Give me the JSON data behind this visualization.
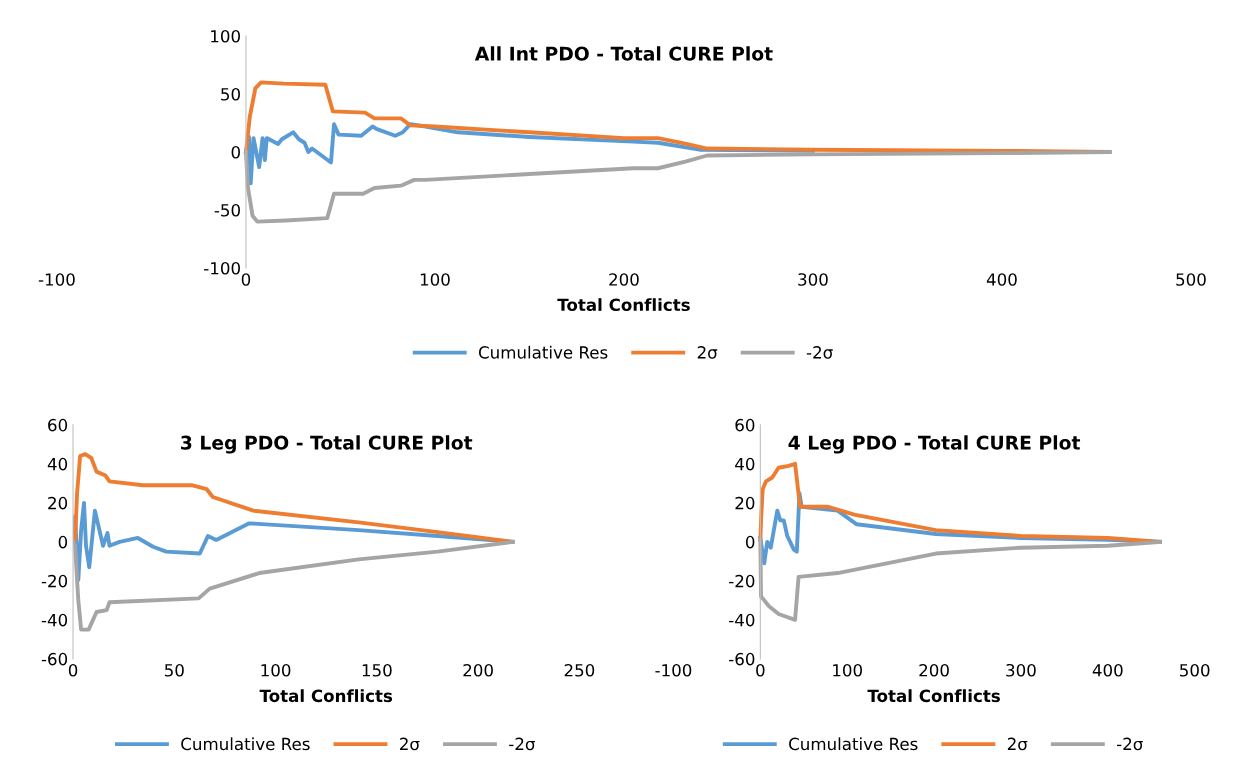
{
  "chart_data": [
    {
      "type": "line",
      "title": "All Int PDO - Total CURE Plot",
      "xlabel": "Total Conflicts",
      "xlim": [
        -100,
        500
      ],
      "xticks": [
        -100,
        0,
        100,
        200,
        300,
        400,
        500
      ],
      "ylim": [
        -100,
        100
      ],
      "yticks": [
        -100,
        -50,
        0,
        50,
        100
      ],
      "grid": false,
      "legend": "bottom",
      "marker": "none",
      "line_style": "solid",
      "series": [
        {
          "name": "Cumulative Res",
          "color": "#5b9bd5",
          "x": [
            0,
            1.6,
            2.5,
            4,
            7,
            8.8,
            10,
            11,
            17,
            19,
            25,
            28,
            31,
            33,
            35,
            45,
            46.6,
            49,
            61,
            67,
            69,
            79,
            83,
            87,
            95,
            112,
            150,
            205,
            218,
            240,
            300
          ],
          "values": [
            0,
            13,
            -27,
            12,
            -13,
            12,
            -7,
            12,
            7,
            11,
            17,
            11,
            8,
            0,
            3,
            -9,
            24,
            15,
            14,
            22,
            20,
            14,
            17,
            24,
            22,
            17,
            13,
            9,
            8,
            2,
            1
          ]
        },
        {
          "name": "2σ",
          "color": "#ed7d31",
          "x": [
            0,
            2,
            5,
            8,
            20,
            42,
            46,
            63,
            68,
            82,
            87,
            100,
            150,
            200,
            218,
            233,
            244,
            300,
            400,
            457
          ],
          "values": [
            0,
            30,
            55,
            60,
            59,
            58,
            35,
            34,
            29,
            29,
            23,
            22,
            17,
            12,
            12,
            7,
            3,
            2,
            1,
            0
          ]
        },
        {
          "name": "-2σ",
          "color": "#a5a5a5",
          "x": [
            0,
            1,
            3.5,
            6,
            21,
            43,
            46.6,
            62,
            68,
            82,
            89,
            95,
            150,
            205,
            218,
            233,
            244,
            300,
            400,
            457
          ],
          "values": [
            0,
            -30,
            -55,
            -60,
            -59,
            -57,
            -36,
            -36,
            -31,
            -29,
            -24,
            -24,
            -19,
            -14,
            -14,
            -8,
            -3,
            -2,
            -1,
            0
          ]
        }
      ]
    },
    {
      "type": "line",
      "title": "3 Leg PDO - Total CURE Plot",
      "xlabel": "Total Conflicts",
      "xlim": [
        0,
        250
      ],
      "xticks": [
        0,
        50,
        100,
        150,
        200,
        250
      ],
      "ylim": [
        -60,
        60
      ],
      "yticks": [
        -60,
        -40,
        -20,
        0,
        20,
        40,
        60
      ],
      "grid": false,
      "legend": "bottom",
      "marker": "none",
      "line_style": "solid",
      "series": [
        {
          "name": "Cumulative Res",
          "color": "#5b9bd5",
          "x": [
            0,
            1,
            2.6,
            4,
            5.4,
            6.4,
            8,
            10.8,
            14.8,
            17,
            18,
            23,
            32,
            39.5,
            46,
            62.6,
            66.6,
            70.7,
            87,
            141,
            180,
            217
          ],
          "values": [
            0,
            13,
            -19.5,
            6,
            20,
            -2,
            -13,
            16,
            -2,
            4.5,
            -2,
            0,
            2,
            -2.5,
            -5,
            -6,
            3,
            1,
            9.5,
            6,
            3,
            0
          ]
        },
        {
          "name": "2σ",
          "color": "#ed7d31",
          "x": [
            0,
            1,
            2,
            3.5,
            6,
            9,
            11.6,
            16,
            18,
            34.5,
            59,
            66,
            69,
            89,
            141,
            180,
            217
          ],
          "values": [
            0,
            1,
            25,
            44,
            45,
            43,
            36,
            34,
            31,
            29,
            29,
            27,
            23,
            16,
            10,
            5,
            0
          ]
        },
        {
          "name": "-2σ",
          "color": "#a5a5a5",
          "x": [
            0,
            1,
            2.6,
            4,
            7.7,
            11.6,
            16.6,
            18,
            62,
            67.5,
            92,
            141,
            180,
            217
          ],
          "values": [
            0,
            -2,
            -30,
            -45,
            -45,
            -36,
            -35,
            -31,
            -29,
            -24,
            -16,
            -9,
            -5,
            0
          ]
        }
      ]
    },
    {
      "type": "line",
      "title": "4 Leg PDO - Total CURE Plot",
      "xlabel": "Total Conflicts",
      "xlim": [
        -100,
        500
      ],
      "xticks": [
        -100,
        0,
        100,
        200,
        300,
        400,
        500
      ],
      "ylim": [
        -60,
        60
      ],
      "yticks": [
        -60,
        -40,
        -20,
        0,
        20,
        40,
        60
      ],
      "grid": false,
      "legend": "bottom",
      "marker": "none",
      "line_style": "solid",
      "series": [
        {
          "name": "Cumulative Res",
          "color": "#5b9bd5",
          "x": [
            0,
            4.5,
            8,
            12,
            19.5,
            23,
            27,
            31,
            38.6,
            42,
            45,
            47.5,
            89,
            111,
            202,
            300,
            400,
            460
          ],
          "values": [
            2,
            -11,
            0,
            -3,
            16,
            11,
            11,
            3,
            -4,
            -5,
            25,
            18,
            16,
            9,
            4,
            2,
            1,
            0
          ]
        },
        {
          "name": "2σ",
          "color": "#ed7d31",
          "x": [
            0,
            0.8,
            2.7,
            6.4,
            13.7,
            21,
            32.6,
            40,
            45.7,
            78,
            108,
            202,
            300,
            400,
            460
          ],
          "values": [
            1,
            11,
            27,
            31,
            33,
            38,
            39,
            40,
            18,
            18,
            14,
            6,
            3,
            2,
            0
          ]
        },
        {
          "name": "-2σ",
          "color": "#a5a5a5",
          "x": [
            0,
            0.8,
            10,
            21,
            40,
            44,
            89,
            202,
            300,
            400,
            460
          ],
          "values": [
            1,
            -28,
            -33,
            -37,
            -40,
            -18,
            -16,
            -6,
            -3,
            -2,
            0
          ]
        }
      ]
    }
  ]
}
